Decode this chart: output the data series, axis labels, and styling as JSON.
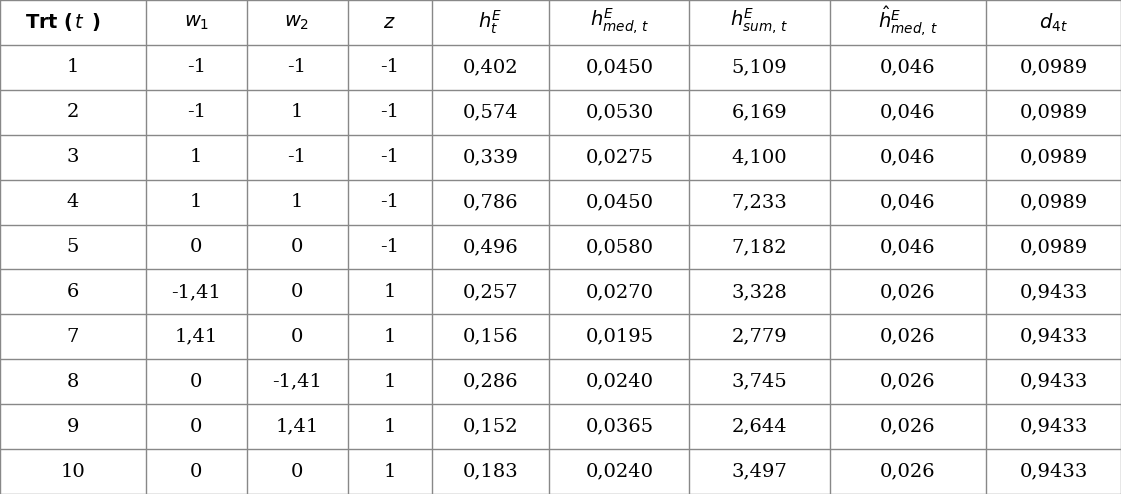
{
  "rows": [
    [
      "1",
      "-1",
      "-1",
      "-1",
      "0,402",
      "0,0450",
      "5,109",
      "0,046",
      "0,0989"
    ],
    [
      "2",
      "-1",
      "1",
      "-1",
      "0,574",
      "0,0530",
      "6,169",
      "0,046",
      "0,0989"
    ],
    [
      "3",
      "1",
      "-1",
      "-1",
      "0,339",
      "0,0275",
      "4,100",
      "0,046",
      "0,0989"
    ],
    [
      "4",
      "1",
      "1",
      "-1",
      "0,786",
      "0,0450",
      "7,233",
      "0,046",
      "0,0989"
    ],
    [
      "5",
      "0",
      "0",
      "-1",
      "0,496",
      "0,0580",
      "7,182",
      "0,046",
      "0,0989"
    ],
    [
      "6",
      "-1,41",
      "0",
      "1",
      "0,257",
      "0,0270",
      "3,328",
      "0,026",
      "0,9433"
    ],
    [
      "7",
      "1,41",
      "0",
      "1",
      "0,156",
      "0,0195",
      "2,779",
      "0,026",
      "0,9433"
    ],
    [
      "8",
      "0",
      "-1,41",
      "1",
      "0,286",
      "0,0240",
      "3,745",
      "0,026",
      "0,9433"
    ],
    [
      "9",
      "0",
      "1,41",
      "1",
      "0,152",
      "0,0365",
      "2,644",
      "0,026",
      "0,9433"
    ],
    [
      "10",
      "0",
      "0",
      "1",
      "0,183",
      "0,0240",
      "3,497",
      "0,026",
      "0,9433"
    ]
  ],
  "col_widths_ratio": [
    1.3,
    0.9,
    0.9,
    0.75,
    1.05,
    1.25,
    1.25,
    1.4,
    1.2
  ],
  "background_color": "#ffffff",
  "line_color": "#888888",
  "text_color": "#000000",
  "header_fontsize": 14,
  "cell_fontsize": 14,
  "fig_width": 11.21,
  "fig_height": 4.94,
  "n_data_rows": 10,
  "n_cols": 9
}
